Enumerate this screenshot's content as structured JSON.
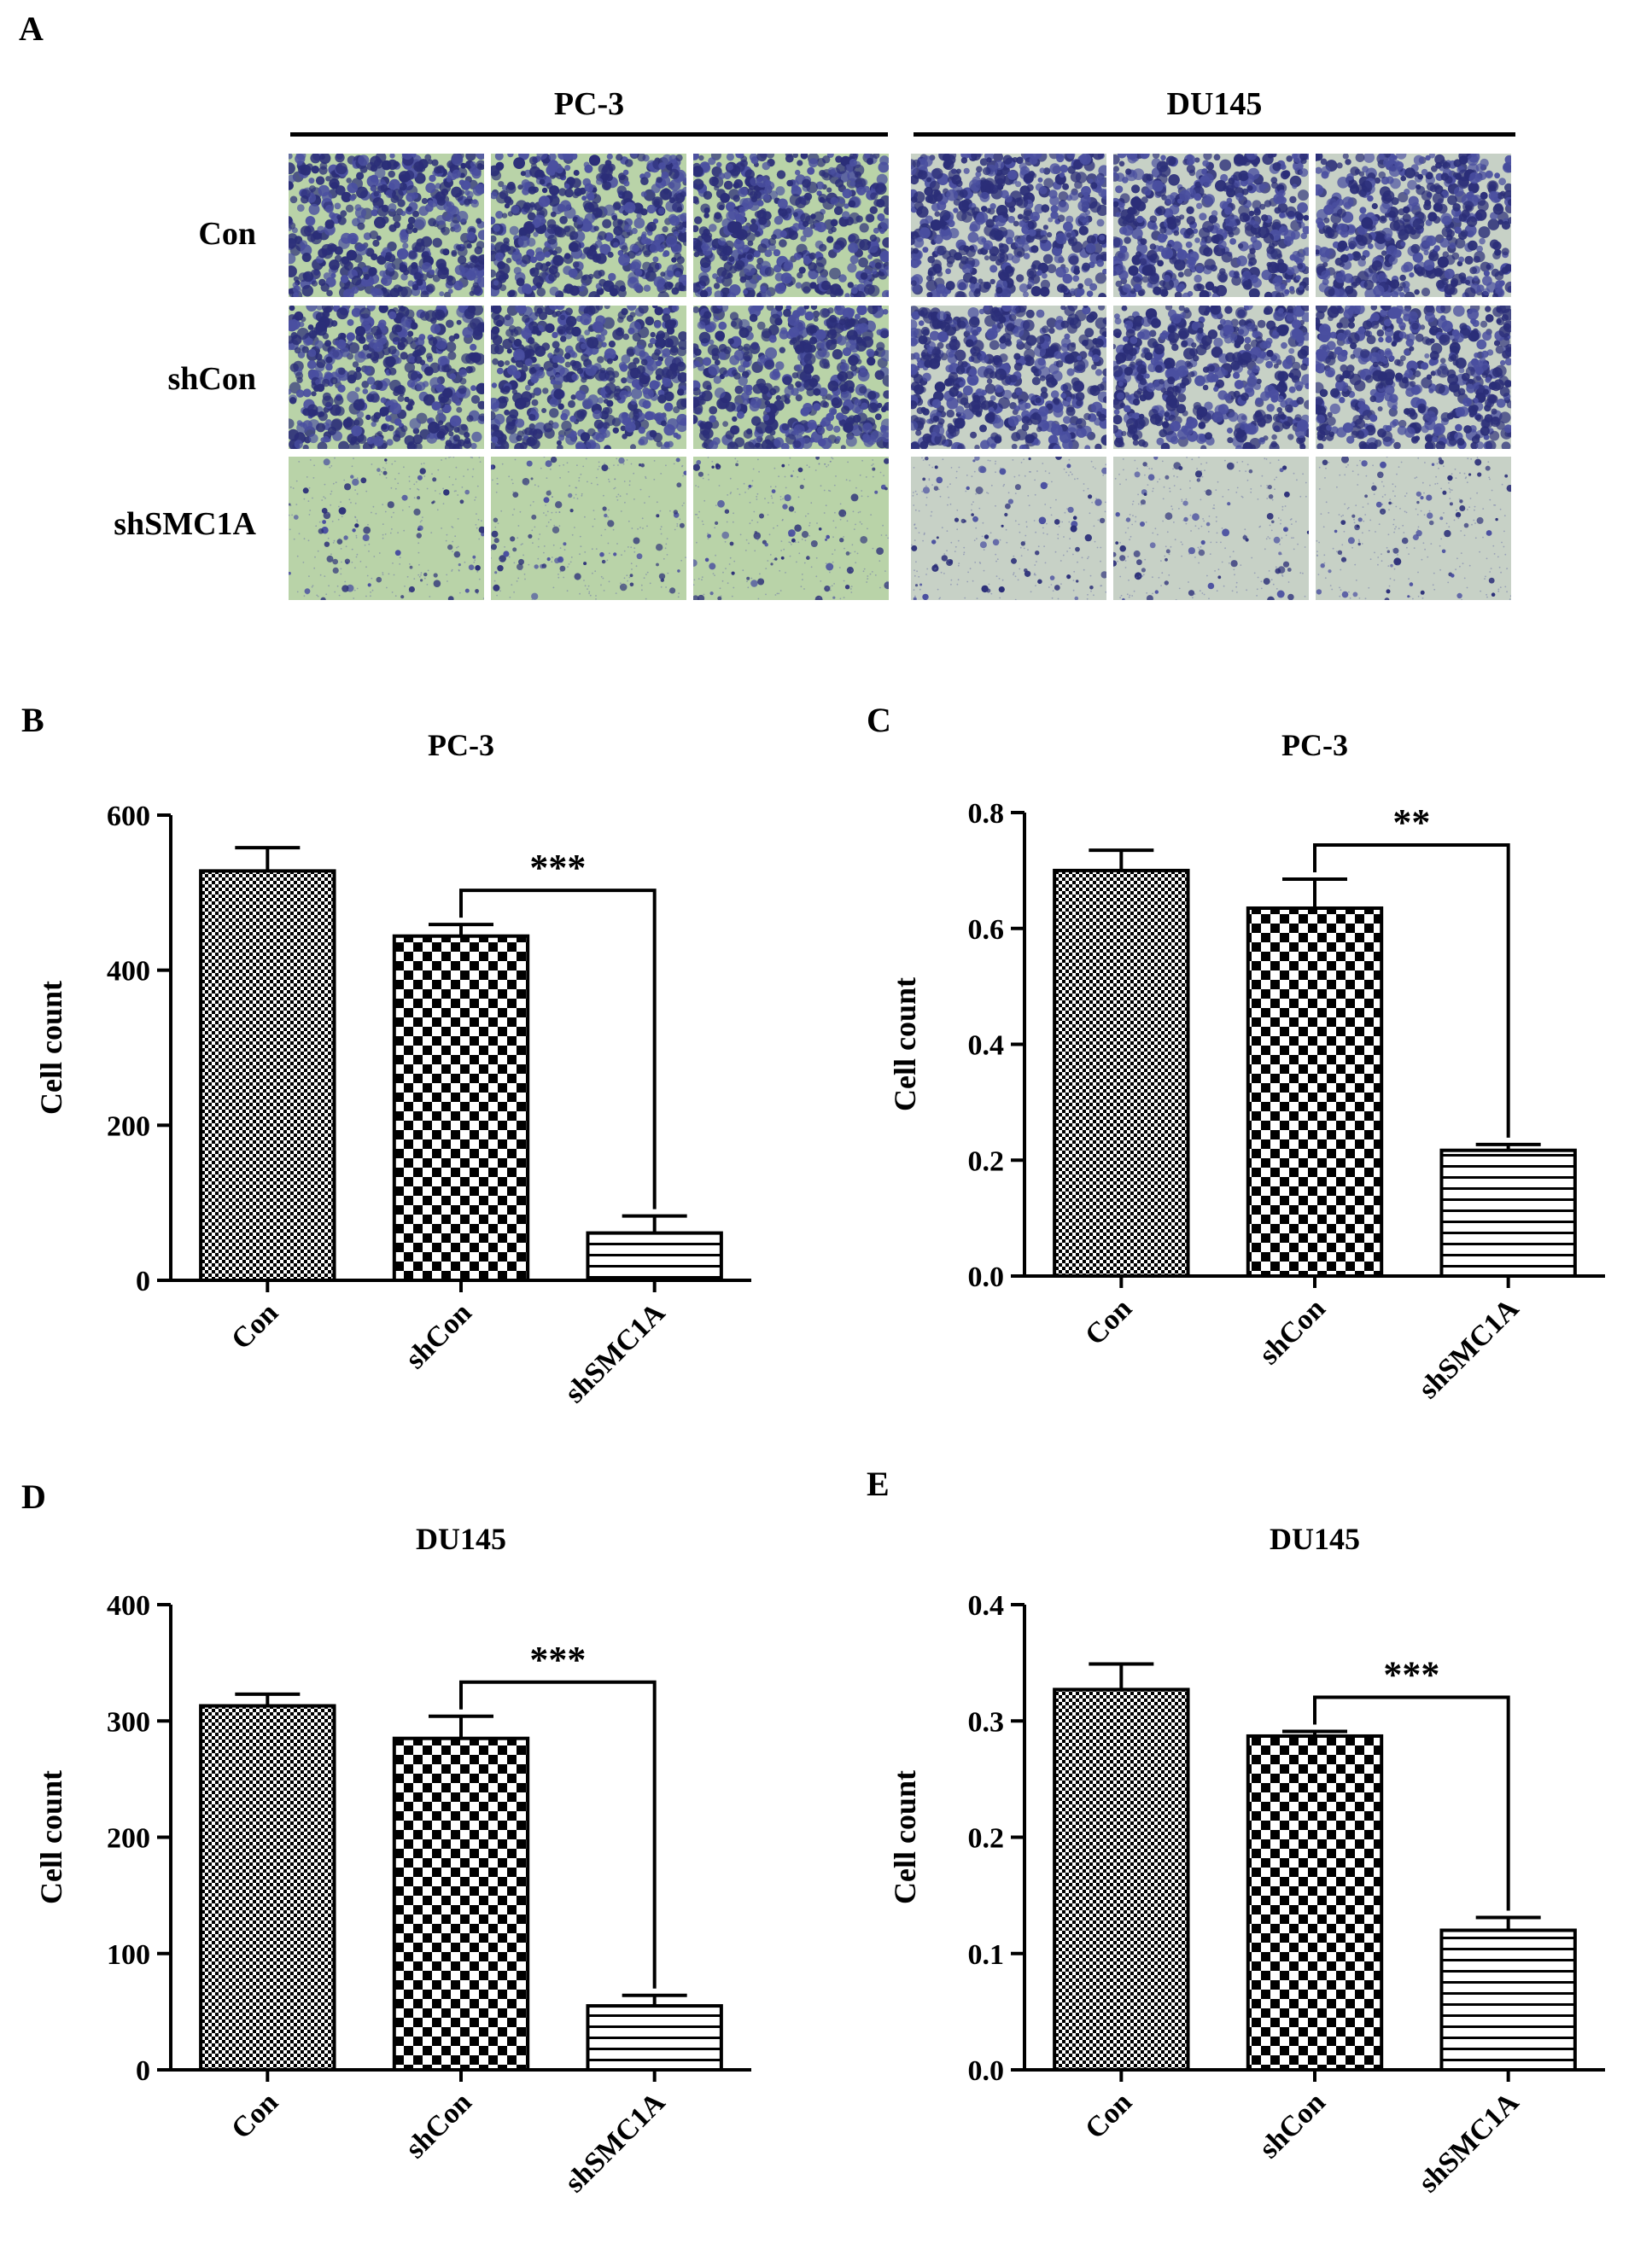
{
  "figure": {
    "panel_letters": [
      "A",
      "B",
      "C",
      "D",
      "E"
    ]
  },
  "panel_a": {
    "groups": [
      "PC-3",
      "DU145"
    ],
    "rows": [
      "Con",
      "shCon",
      "shSMC1A"
    ]
  },
  "colors": {
    "stain_dark": "#2b2e78",
    "stain_mid": "#4a4fa0",
    "membrane_pc3": "#b9d3a8",
    "membrane_du145": "#c7d1c6",
    "ink": "#000000"
  },
  "chart_data": [
    {
      "panel": "B",
      "type": "bar",
      "title": "PC-3",
      "ylabel": "Cell count",
      "categories": [
        "Con",
        "shCon",
        "shSMC1A"
      ],
      "values": [
        528,
        444,
        61
      ],
      "errors": [
        30,
        15,
        22
      ],
      "ylim": [
        0,
        600
      ],
      "yticks": [
        "0",
        "200",
        "400",
        "600"
      ],
      "patterns": [
        "fine-check",
        "checker",
        "horizontal-lines"
      ],
      "significance": {
        "from": 1,
        "to": 2,
        "label": "***"
      }
    },
    {
      "panel": "C",
      "type": "bar",
      "title": "PC-3",
      "ylabel": "Cell count",
      "categories": [
        "Con",
        "shCon",
        "shSMC1A"
      ],
      "values": [
        0.7,
        0.635,
        0.217
      ],
      "errors": [
        0.035,
        0.05,
        0.01
      ],
      "ylim": [
        0,
        0.8
      ],
      "yticks": [
        "0.0",
        "0.2",
        "0.4",
        "0.6",
        "0.8"
      ],
      "patterns": [
        "fine-check",
        "checker",
        "horizontal-lines"
      ],
      "significance": {
        "from": 1,
        "to": 2,
        "label": "**"
      }
    },
    {
      "panel": "D",
      "type": "bar",
      "title": "DU145",
      "ylabel": "Cell count",
      "categories": [
        "Con",
        "shCon",
        "shSMC1A"
      ],
      "values": [
        313,
        285,
        55
      ],
      "errors": [
        10,
        19,
        9
      ],
      "ylim": [
        0,
        400
      ],
      "yticks": [
        "0",
        "100",
        "200",
        "300",
        "400"
      ],
      "patterns": [
        "fine-check",
        "checker",
        "horizontal-lines"
      ],
      "significance": {
        "from": 1,
        "to": 2,
        "label": "***"
      }
    },
    {
      "panel": "E",
      "type": "bar",
      "title": "DU145",
      "ylabel": "Cell count",
      "categories": [
        "Con",
        "shCon",
        "shSMC1A"
      ],
      "values": [
        0.327,
        0.287,
        0.12
      ],
      "errors": [
        0.022,
        0.004,
        0.011
      ],
      "ylim": [
        0,
        0.4
      ],
      "yticks": [
        "0.0",
        "0.1",
        "0.2",
        "0.3",
        "0.4"
      ],
      "patterns": [
        "fine-check",
        "checker",
        "horizontal-lines"
      ],
      "significance": {
        "from": 1,
        "to": 2,
        "label": "***"
      }
    }
  ]
}
